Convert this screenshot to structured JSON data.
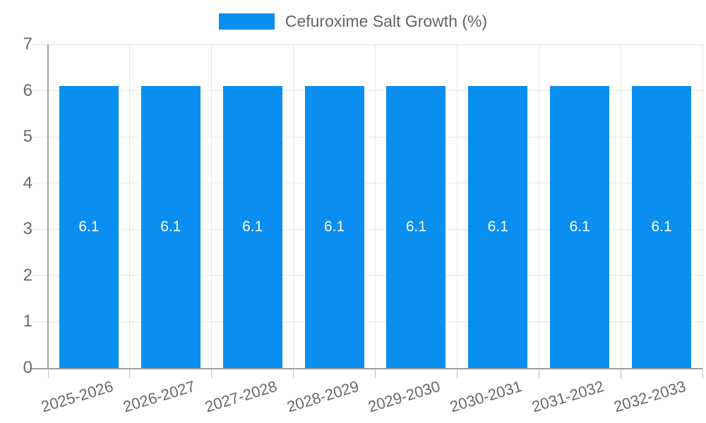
{
  "legend": {
    "label": "Cefuroxime Salt Growth (%)",
    "swatch_color": "#0a8ff0"
  },
  "chart_data": {
    "type": "bar",
    "title": "Cefuroxime Salt Growth (%)",
    "categories": [
      "2025-2026",
      "2026-2027",
      "2027-2028",
      "2028-2029",
      "2029-2030",
      "2030-2031",
      "2031-2032",
      "2032-2033"
    ],
    "series": [
      {
        "name": "Cefuroxime Salt Growth (%)",
        "values": [
          6.1,
          6.1,
          6.1,
          6.1,
          6.1,
          6.1,
          6.1,
          6.1
        ]
      }
    ],
    "value_labels": [
      "6.1",
      "6.1",
      "6.1",
      "6.1",
      "6.1",
      "6.1",
      "6.1",
      "6.1"
    ],
    "xlabel": "",
    "ylabel": "",
    "ylim": [
      0,
      7
    ],
    "yticks": [
      0,
      1,
      2,
      3,
      4,
      5,
      6,
      7
    ],
    "grid": true,
    "legend_position": "top",
    "bar_color": "#0a8ff0",
    "value_label_color": "#ffffff",
    "axis_line_color": "#9e9e9e",
    "gridline_color": "#e6e6e6",
    "tick_color": "#c2c2c2",
    "axis_text_color": "#696969"
  }
}
